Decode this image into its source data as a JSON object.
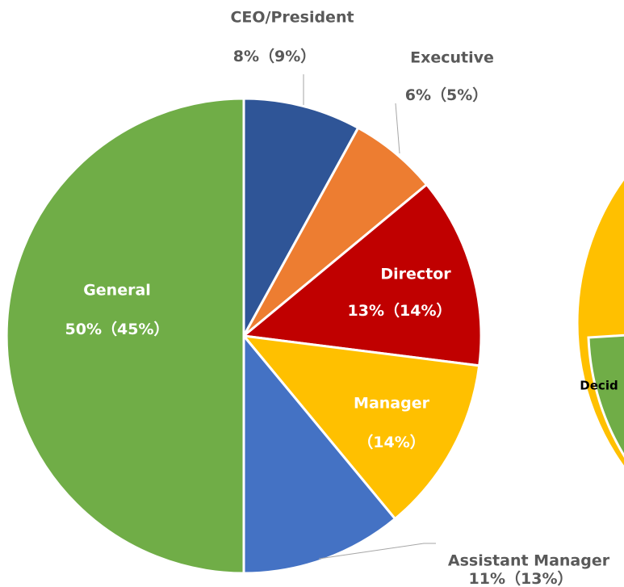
{
  "chart_data": {
    "type": "pie",
    "categories": [
      "CEO/President",
      "Executive",
      "Director",
      "Manager",
      "Assistant Manager",
      "General"
    ],
    "values": [
      8,
      6,
      13,
      12,
      11,
      50
    ],
    "value_labels": [
      "8%",
      "6%",
      "13%",
      null,
      "11%",
      "50%"
    ],
    "prior_value_labels": [
      "（9%）",
      "（5%）",
      "（14%）",
      "（14%）",
      "（13%）",
      "（45%）"
    ],
    "colors": [
      "#2f5597",
      "#ed7d31",
      "#c00000",
      "#ffc000",
      "#4472c4",
      "#70ad47"
    ]
  },
  "fragment_label": "Decid"
}
